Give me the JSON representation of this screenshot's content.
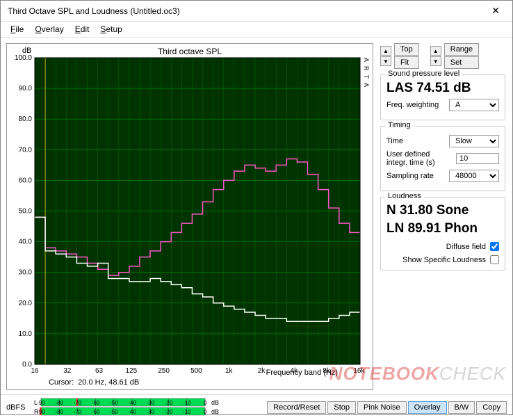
{
  "window": {
    "title": "Third Octave SPL and Loudness (Untitled.oc3)"
  },
  "menu": {
    "file": "File",
    "overlay": "Overlay",
    "edit": "Edit",
    "setup": "Setup"
  },
  "chart": {
    "title": "Third octave SPL",
    "y_unit": "dB",
    "x_unit": "Frequency band (Hz)",
    "cursor_label": "Cursor:",
    "cursor_value": "20.0 Hz, 48.61 dB",
    "arta_label": "A R T A",
    "plot_bg": "#003300",
    "grid_color": "#00aa00",
    "cursor_color": "#ccaa00",
    "x": {
      "min_log": 4.0,
      "max_log": 14.0,
      "ticks": [
        16,
        32,
        63,
        125,
        250,
        500,
        "1k",
        "2k",
        "4k",
        "8k",
        "16k"
      ],
      "tick_logs": [
        4,
        5,
        5.977,
        6.966,
        7.966,
        8.966,
        9.966,
        10.966,
        11.966,
        12.966,
        13.966
      ]
    },
    "y": {
      "min": 0,
      "max": 100,
      "ticks": [
        0,
        10,
        20,
        30,
        40,
        50,
        60,
        70,
        80,
        90,
        100
      ]
    },
    "series": [
      {
        "name": "pink",
        "color": "#ff55cc",
        "values": [
          48,
          38,
          37,
          36,
          35,
          33,
          31,
          29,
          30,
          32,
          35,
          37,
          40,
          43,
          46,
          49,
          53,
          57,
          60,
          63,
          65,
          64,
          63,
          65,
          67,
          66,
          62,
          57,
          51,
          46,
          43
        ]
      },
      {
        "name": "white",
        "color": "#ffffff",
        "values": [
          48,
          37,
          36,
          35,
          33,
          32,
          33,
          28,
          28,
          27,
          27,
          28,
          27,
          26,
          25,
          23,
          22,
          20,
          19,
          18,
          17,
          16,
          15,
          15,
          14,
          14,
          14,
          14,
          15,
          16,
          17
        ]
      }
    ],
    "band_count": 31
  },
  "controls": {
    "top": {
      "topLabel": "Top",
      "fitLabel": "Fit",
      "rangeLabel": "Range",
      "setLabel": "Set"
    },
    "spl": {
      "label": "Sound pressure level",
      "value": "LAS 74.51 dB",
      "freqw_label": "Freq. weighting",
      "freqw_value": "A"
    },
    "timing": {
      "label": "Timing",
      "time_label": "Time",
      "time_value": "Slow",
      "integ_label": "User defined integr. time (s)",
      "integ_value": "10",
      "rate_label": "Sampling rate",
      "rate_value": "48000"
    },
    "loud": {
      "label": "Loudness",
      "sone": "N 31.80 Sone",
      "phon": "LN 89.91 Phon",
      "diffuse_label": "Diffuse field",
      "diffuse_checked": true,
      "showspec_label": "Show Specific Loudness",
      "showspec_checked": false
    }
  },
  "bottom": {
    "dbfs_label": "dBFS",
    "meter": {
      "bg": "#00dd55",
      "red": "#ff3333",
      "ticks": [
        -90,
        -80,
        -70,
        -60,
        -50,
        -40,
        -30,
        -20,
        -10,
        0
      ],
      "channels": [
        "L",
        "R"
      ],
      "level": [
        -70,
        -90
      ],
      "db_suffix": "dB"
    },
    "buttons": {
      "record": "Record/Reset",
      "stop": "Stop",
      "pink": "Pink Noise",
      "overlay": "Overlay",
      "bw": "B/W",
      "copy": "Copy",
      "active": "overlay"
    }
  },
  "watermark": {
    "t1": "NOTEBOOK",
    "t2": "CHECK"
  }
}
